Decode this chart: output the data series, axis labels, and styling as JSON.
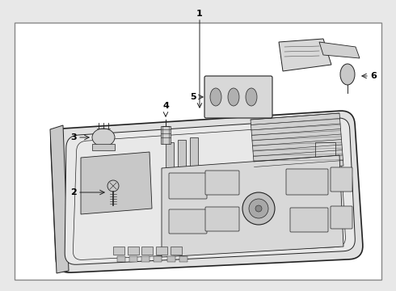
{
  "background_color": "#e8e8e8",
  "border_color": "#555555",
  "line_color": "#222222",
  "fill_color": "#ffffff",
  "fig_width": 4.9,
  "fig_height": 3.6,
  "dpi": 100,
  "label_fontsize": 8,
  "label_color": "#000000"
}
